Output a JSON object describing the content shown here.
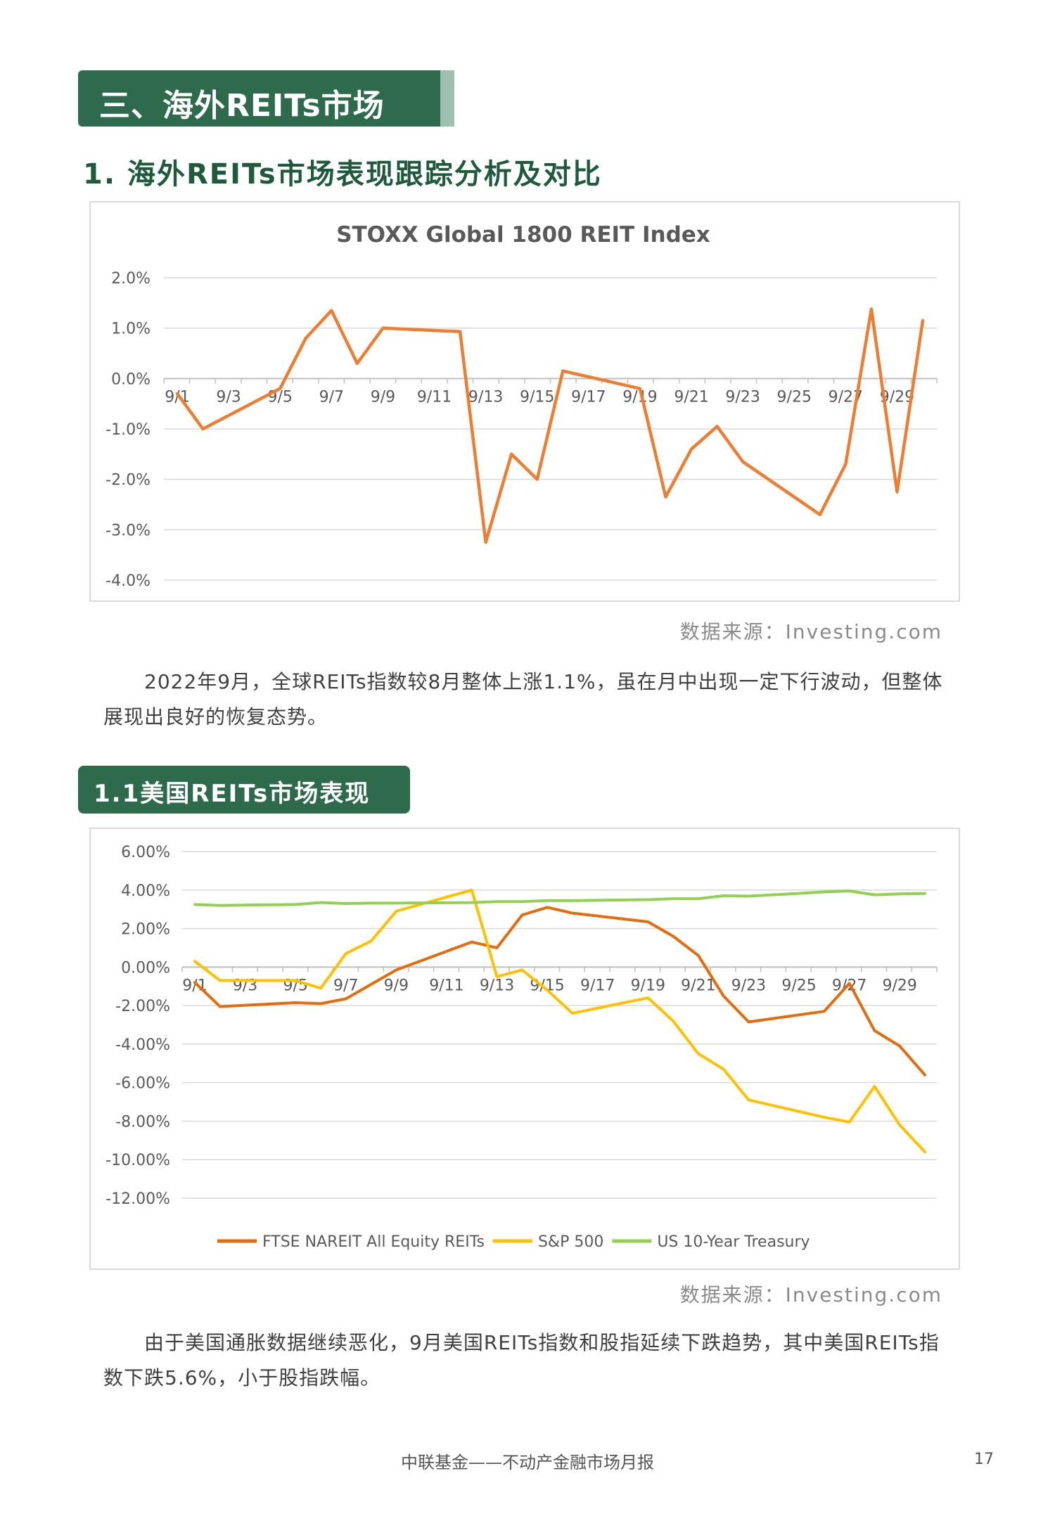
{
  "section": {
    "title": "三、海外REITs市场"
  },
  "subtitle": "1. 海外REITs市场表现跟踪分析及对比",
  "chart_data": [
    {
      "type": "line",
      "title": "STOXX Global 1800 REIT Index",
      "categories": [
        "9/1",
        "9/3",
        "9/5",
        "9/7",
        "9/9",
        "9/11",
        "9/13",
        "9/15",
        "9/17",
        "9/19",
        "9/21",
        "9/23",
        "9/25",
        "9/27",
        "9/29"
      ],
      "yticks": [
        "2.0%",
        "1.0%",
        "0.0%",
        "-1.0%",
        "-2.0%",
        "-3.0%",
        "-4.0%"
      ],
      "ylim": [
        -4.0,
        2.0
      ],
      "grid": true,
      "color": "#ed7d31",
      "x": [
        1,
        2,
        5,
        6,
        7,
        8,
        9,
        12,
        13,
        14,
        15,
        16,
        19,
        20,
        21,
        22,
        23,
        26,
        27,
        28,
        29,
        30
      ],
      "series": [
        {
          "values": [
            -0.3,
            -1.0,
            -0.2,
            0.8,
            1.35,
            0.3,
            1.0,
            0.93,
            -3.25,
            -1.5,
            -2.0,
            0.15,
            -0.2,
            -2.35,
            -1.4,
            -0.95,
            -1.65,
            -2.7,
            -1.7,
            1.38,
            -2.25,
            1.15
          ]
        }
      ]
    },
    {
      "type": "line",
      "categories": [
        "9/1",
        "9/3",
        "9/5",
        "9/7",
        "9/9",
        "9/11",
        "9/13",
        "9/15",
        "9/17",
        "9/19",
        "9/21",
        "9/23",
        "9/25",
        "9/27",
        "9/29"
      ],
      "yticks": [
        "6.00%",
        "4.00%",
        "2.00%",
        "0.00%",
        "-2.00%",
        "-4.00%",
        "-6.00%",
        "-8.00%",
        "-10.00%",
        "-12.00%"
      ],
      "ylim": [
        -12.0,
        6.0
      ],
      "grid": true,
      "legend_position": "bottom",
      "x": [
        1,
        2,
        5,
        6,
        7,
        8,
        9,
        12,
        13,
        14,
        15,
        16,
        19,
        20,
        21,
        22,
        23,
        26,
        27,
        28,
        29,
        30
      ],
      "series": [
        {
          "name": "FTSE NAREIT All Equity REITs",
          "color": "#e46c0a",
          "values": [
            -0.8,
            -2.05,
            -1.85,
            -1.9,
            -1.65,
            -0.9,
            -0.15,
            1.3,
            1.0,
            2.7,
            3.1,
            2.8,
            2.35,
            1.6,
            0.6,
            -1.5,
            -2.85,
            -2.3,
            -0.85,
            -3.3,
            -4.1,
            -5.6
          ]
        },
        {
          "name": "S&P 500",
          "color": "#ffc000",
          "values": [
            0.3,
            -0.7,
            -0.7,
            -1.1,
            0.7,
            1.35,
            2.9,
            4.0,
            -0.5,
            -0.15,
            -1.2,
            -2.4,
            -1.6,
            -2.8,
            -4.5,
            -5.3,
            -6.9,
            -7.8,
            -8.05,
            -6.2,
            -8.2,
            -9.6
          ]
        },
        {
          "name": "US 10-Year Treasury",
          "color": "#92d050",
          "values": [
            3.25,
            3.2,
            3.25,
            3.35,
            3.3,
            3.32,
            3.32,
            3.35,
            3.4,
            3.4,
            3.45,
            3.45,
            3.5,
            3.55,
            3.55,
            3.7,
            3.68,
            3.9,
            3.95,
            3.75,
            3.8,
            3.82
          ]
        }
      ]
    }
  ],
  "source1": "数据来源：Investing.com",
  "para1": "2022年9月，全球REITs指数较8月整体上涨1.1%，虽在月中出现一定下行波动，但整体展现出良好的恢复态势。",
  "pill": "1.1美国REITs市场表现",
  "source2": "数据来源：Investing.com",
  "para2": "由于美国通胀数据继续恶化，9月美国REITs指数和股指延续下跌趋势，其中美国REITs指数下跌5.6%，小于股指跌幅。",
  "footer": "中联基金——不动产金融市场月报",
  "page_number": "17"
}
